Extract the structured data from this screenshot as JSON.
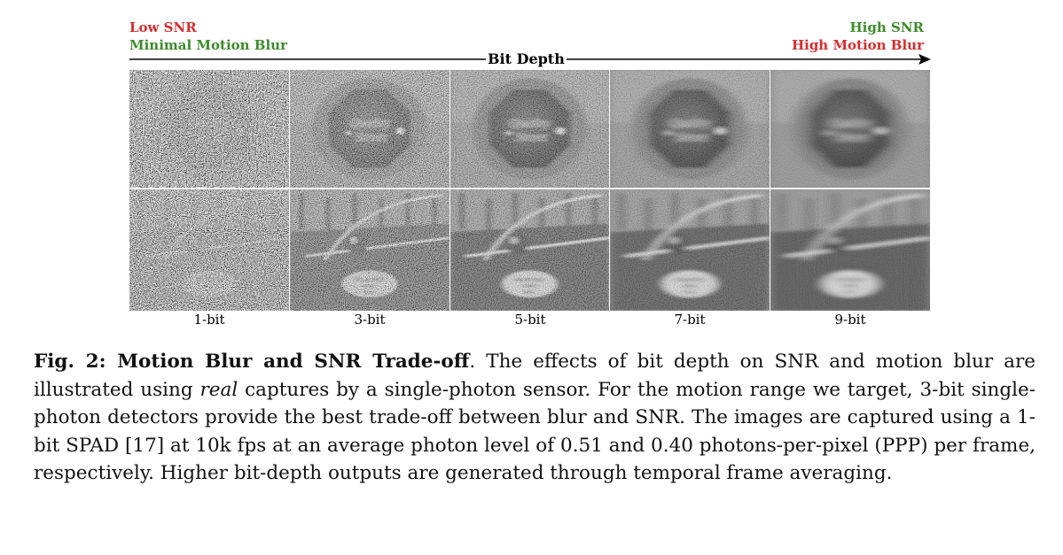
{
  "figure": {
    "left_labels": {
      "line1": "Low SNR",
      "line2": "Minimal Motion Blur"
    },
    "right_labels": {
      "line1": "High SNR",
      "line2": "High Motion Blur"
    },
    "axis_title": "Bit Depth",
    "columns": [
      {
        "label": "1-bit",
        "noise": 0.95,
        "blur": 0.0
      },
      {
        "label": "3-bit",
        "noise": 0.55,
        "blur": 0.15
      },
      {
        "label": "5-bit",
        "noise": 0.35,
        "blur": 0.35
      },
      {
        "label": "7-bit",
        "noise": 0.18,
        "blur": 0.65
      },
      {
        "label": "9-bit",
        "noise": 0.08,
        "blur": 0.9
      }
    ],
    "rows": [
      {
        "subject": "candy",
        "text_line1": "Quality",
        "text_line2": "Street"
      },
      {
        "subject": "car",
        "sign_line1": "PRE-BOOKED",
        "sign_line2": "HIRES",
        "sign_line3": "ONLY"
      }
    ],
    "colors": {
      "red": "#d62d2d",
      "green": "#3d8b2b"
    }
  },
  "caption": {
    "lead": "Fig. 2: Motion Blur and SNR Trade-off",
    "part1": ". The effects of bit depth on SNR and motion blur are illustrated using ",
    "emph": "real",
    "part2": " captures by a single-photon sensor. For the motion range we target, 3-bit single-photon detectors provide the best trade-off between blur and SNR. The images are captured using a 1-bit SPAD [17] at 10k fps at an average photon level of 0.51 and 0.40 photons-per-pixel (PPP) per frame, respectively. Higher bit-depth outputs are generated through temporal frame averaging."
  }
}
